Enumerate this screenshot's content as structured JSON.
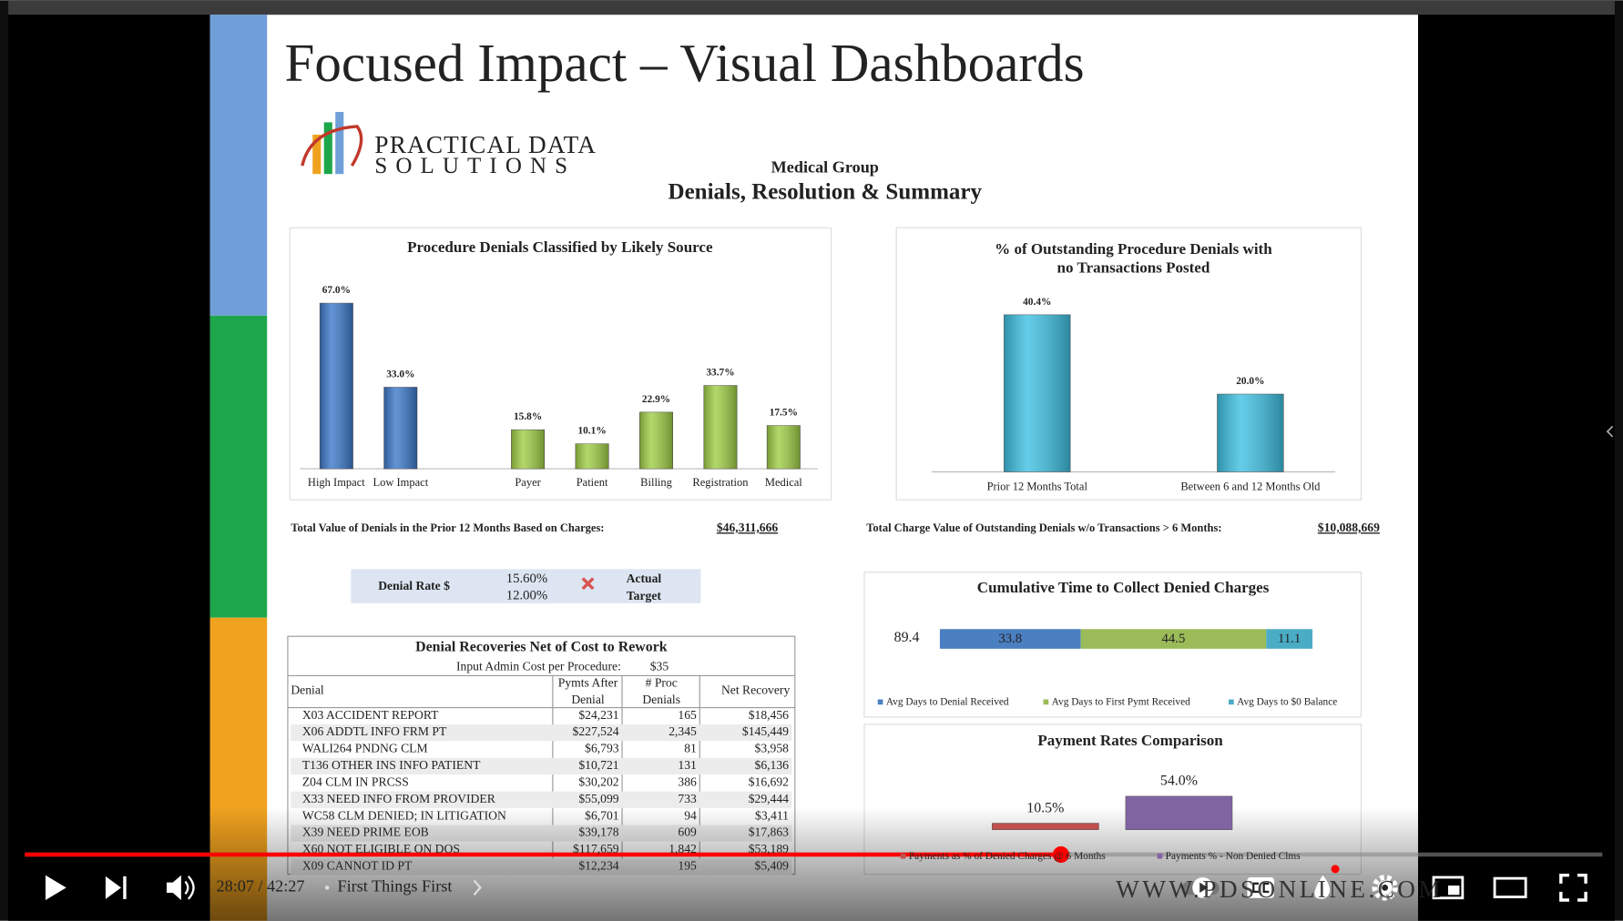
{
  "slide": {
    "title": "Focused Impact – Visual Dashboards",
    "logo": {
      "line1": "PRACTICAL DATA",
      "line2": "SOLUTIONS"
    },
    "subtitle": "Medical Group",
    "heading": "Denials, Resolution & Summary",
    "charts": [
      {
        "type": "bar",
        "title": [
          "Procedure Denials Classified by Likely Source"
        ],
        "categories": [
          "High Impact",
          "Low Impact",
          "Payer",
          "Patient",
          "Billing",
          "Registration",
          "Medical"
        ],
        "values": [
          67.0,
          33.0,
          15.8,
          10.1,
          22.9,
          33.7,
          17.5
        ],
        "value_labels": [
          "67.0%",
          "33.0%",
          "15.8%",
          "10.1%",
          "22.9%",
          "33.7%",
          "17.5%"
        ],
        "colors": [
          "#3b78c8",
          "#3b78c8",
          "#9fcd45",
          "#9fcd45",
          "#9fcd45",
          "#9fcd45",
          "#9fcd45"
        ]
      },
      {
        "type": "bar",
        "title": [
          "% of Outstanding Procedure Denials with",
          "no Transactions Posted"
        ],
        "categories": [
          "Prior 12 Months Total",
          "Between 6 and 12 Months Old"
        ],
        "values": [
          40.4,
          20.0
        ],
        "value_labels": [
          "40.4%",
          "20.0%"
        ],
        "colors": [
          "#3ec0e2",
          "#3ec0e2"
        ]
      },
      {
        "type": "stacked_bar",
        "title": [
          "Cumulative Time to Collect Denied Charges"
        ],
        "total": 89.4,
        "series": [
          {
            "name": "Avg Days to Denial Received",
            "color": "#4a7fc1",
            "values": [
              33.8
            ]
          },
          {
            "name": "Avg Days to First Pymt Received",
            "color": "#9bbb59",
            "values": [
              44.5
            ]
          },
          {
            "name": "Avg Days to $0 Balance",
            "color": "#4bacc6",
            "values": [
              11.1
            ]
          }
        ]
      },
      {
        "type": "grouped_bar",
        "title": [
          "Payment Rates Comparison"
        ],
        "series": [
          {
            "name": "Payments as % of Denied Charges @ 6 Months",
            "color": "#c0504d",
            "values": [
              10.5
            ],
            "value_labels": [
              "10.5%"
            ]
          },
          {
            "name": "Payments % - Non Denied Clms",
            "color": "#8064a2",
            "values": [
              54.0
            ],
            "value_labels": [
              "54.0%"
            ]
          }
        ]
      }
    ],
    "totals": [
      {
        "label": "Total Value of Denials in the Prior 12 Months Based on Charges:",
        "value": "$46,311,666"
      },
      {
        "label": "Total Charge Value of Outstanding Denials w/o Transactions > 6 Months:",
        "value": "$10,088,669"
      }
    ],
    "denial_rate": {
      "label": "Denial Rate $",
      "actual": "15.60%",
      "target": "12.00%",
      "actual_label": "Actual",
      "target_label": "Target"
    },
    "table": {
      "title": "Denial Recoveries Net of Cost to Rework",
      "input_label": "Input Admin Cost per Procedure:",
      "input_value": "$35",
      "headers": [
        [
          "Denial"
        ],
        [
          "Pymts After",
          "Denial"
        ],
        [
          "# Proc",
          "Denials"
        ],
        [
          "Net Recovery"
        ]
      ],
      "rows": [
        [
          "X03 ACCIDENT REPORT",
          "$24,231",
          "165",
          "$18,456"
        ],
        [
          "X06 ADDTL INFO FRM PT",
          "$227,524",
          "2,345",
          "$145,449"
        ],
        [
          "WALI264 PNDNG CLM",
          "$6,793",
          "81",
          "$3,958"
        ],
        [
          "T136 OTHER INS INFO PATIENT",
          "$10,721",
          "131",
          "$6,136"
        ],
        [
          "Z04 CLM IN PRCSS",
          "$30,202",
          "386",
          "$16,692"
        ],
        [
          "X33 NEED INFO FROM PROVIDER",
          "$55,099",
          "733",
          "$29,444"
        ],
        [
          "WC58 CLM DENIED; IN LITIGATION",
          "$6,701",
          "94",
          "$3,411"
        ],
        [
          "X39 NEED PRIME EOB",
          "$39,178",
          "609",
          "$17,863"
        ],
        [
          "X60 NOT ELIGIBLE ON DOS",
          "$117,659",
          "1,842",
          "$53,189"
        ],
        [
          "X09 CANNOT ID PT",
          "$12,234",
          "195",
          "$5,409"
        ]
      ]
    }
  },
  "player": {
    "time": "28:07 / 42:27",
    "chapter": "First Things First",
    "watermark": "WWW.PDSONLINE.COM"
  }
}
